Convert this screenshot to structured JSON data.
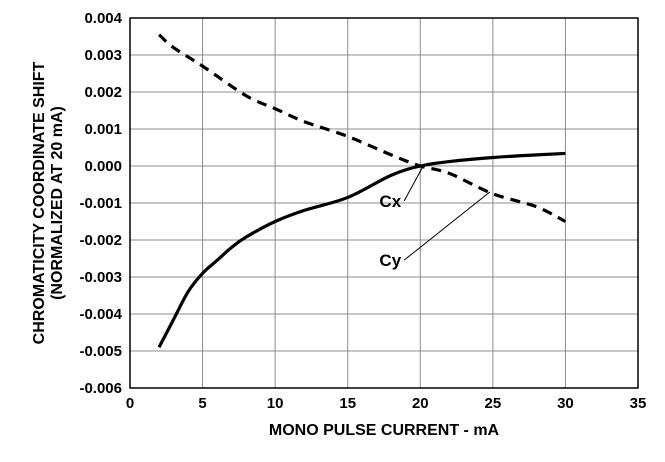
{
  "chart_data": {
    "type": "line",
    "title": "",
    "xlabel": "MONO PULSE CURRENT - mA",
    "ylabel_line1": "CHROMATICITY COORDINATE SHIFT",
    "ylabel_line2": "(NORMALIZED AT 20 mA)",
    "xlim": [
      0,
      35
    ],
    "ylim": [
      -0.006,
      0.004
    ],
    "x_ticks": [
      0,
      5,
      10,
      15,
      20,
      25,
      30,
      35
    ],
    "x_tick_labels": [
      "0",
      "5",
      "10",
      "15",
      "20",
      "25",
      "30",
      "35"
    ],
    "y_ticks": [
      0.004,
      0.003,
      0.002,
      0.001,
      0.0,
      -0.001,
      -0.002,
      -0.003,
      -0.004,
      -0.005,
      -0.006
    ],
    "y_tick_labels": [
      "0.004",
      "0.003",
      "0.002",
      "0.001",
      "0.000",
      "-0.001",
      "-0.002",
      "-0.003",
      "-0.004",
      "-0.005",
      "-0.006"
    ],
    "grid": true,
    "series": [
      {
        "name": "Cx",
        "style": "solid",
        "color": "#000000",
        "x": [
          2,
          3,
          4,
          5,
          6,
          7,
          8,
          10,
          12,
          15,
          18,
          20,
          22,
          25,
          28,
          30
        ],
        "y": [
          -0.0049,
          -0.00415,
          -0.0034,
          -0.0029,
          -0.00255,
          -0.0022,
          -0.00192,
          -0.0015,
          -0.0012,
          -0.00085,
          -0.00025,
          0.0,
          0.00012,
          0.00023,
          0.0003,
          0.00034
        ]
      },
      {
        "name": "Cy",
        "style": "dashed",
        "color": "#000000",
        "x": [
          2,
          3,
          5,
          8,
          10,
          12,
          15,
          18,
          20,
          22,
          25,
          28,
          30
        ],
        "y": [
          0.00355,
          0.0032,
          0.0027,
          0.0019,
          0.00155,
          0.0012,
          0.0008,
          0.0003,
          0.0,
          -0.0002,
          -0.00075,
          -0.0011,
          -0.0015
        ]
      }
    ],
    "annotations": [
      {
        "text": "Cx",
        "series": "Cx",
        "point": [
          20.2,
          0.0
        ],
        "label_at": [
          18.2,
          -0.00108
        ]
      },
      {
        "text": "Cy",
        "series": "Cy",
        "point": [
          24.8,
          -0.0007
        ],
        "label_at": [
          18.2,
          -0.00268
        ]
      }
    ]
  }
}
